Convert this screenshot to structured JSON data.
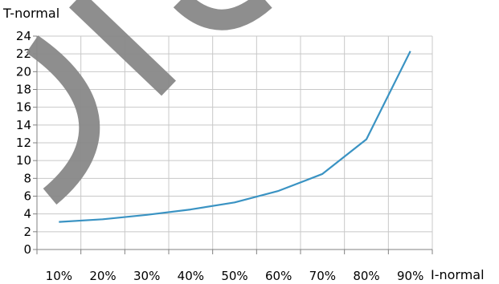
{
  "chart_data": {
    "type": "line",
    "x": [
      "10%",
      "20%",
      "30%",
      "40%",
      "50%",
      "60%",
      "70%",
      "80%",
      "90%"
    ],
    "series": [
      {
        "values": [
          3.1,
          3.4,
          3.9,
          4.5,
          5.3,
          6.6,
          8.5,
          12.4,
          22.3
        ]
      }
    ],
    "xlabel": "I-normal",
    "ylabel": "T-normal",
    "ylim": [
      0,
      24
    ],
    "yticks": [
      0,
      2,
      4,
      6,
      8,
      10,
      12,
      14,
      16,
      18,
      20,
      22,
      24
    ],
    "grid": true,
    "legend": "none",
    "colors": {
      "line": "#3a93c3",
      "grid": "#c8c8c8",
      "axis": "#808080"
    }
  }
}
